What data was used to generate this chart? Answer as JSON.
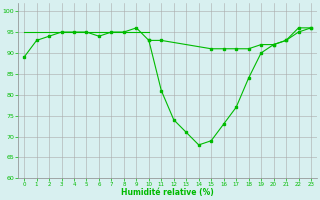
{
  "x": [
    0,
    1,
    2,
    3,
    4,
    5,
    6,
    7,
    8,
    9,
    10,
    11,
    12,
    13,
    14,
    15,
    16,
    17,
    18,
    19,
    20,
    21,
    22,
    23
  ],
  "line_main": [
    89,
    93,
    94,
    95,
    95,
    95,
    94,
    95,
    95,
    96,
    93,
    81,
    74,
    71,
    68,
    69,
    73,
    77,
    84,
    90,
    92,
    93,
    96,
    96
  ],
  "line_flat_x": [
    0,
    1,
    2,
    3,
    4,
    5,
    6,
    7,
    8,
    9,
    10
  ],
  "line_flat_y": [
    95,
    95,
    95,
    95,
    95,
    95,
    95,
    95,
    95,
    95,
    95
  ],
  "line_mid_x": [
    10,
    11,
    15,
    16,
    17,
    18,
    19,
    20,
    21,
    22,
    23
  ],
  "line_mid_y": [
    93,
    93,
    91,
    91,
    91,
    91,
    92,
    92,
    93,
    95,
    96
  ],
  "line_color": "#00bb00",
  "bg_color": "#d8f0f0",
  "grid_color": "#aaaaaa",
  "xlabel": "Humidité relative (%)",
  "ylim": [
    60,
    102
  ],
  "xlim": [
    -0.5,
    23.5
  ],
  "yticks": [
    60,
    65,
    70,
    75,
    80,
    85,
    90,
    95,
    100
  ],
  "xticks": [
    0,
    1,
    2,
    3,
    4,
    5,
    6,
    7,
    8,
    9,
    10,
    11,
    12,
    13,
    14,
    15,
    16,
    17,
    18,
    19,
    20,
    21,
    22,
    23
  ]
}
